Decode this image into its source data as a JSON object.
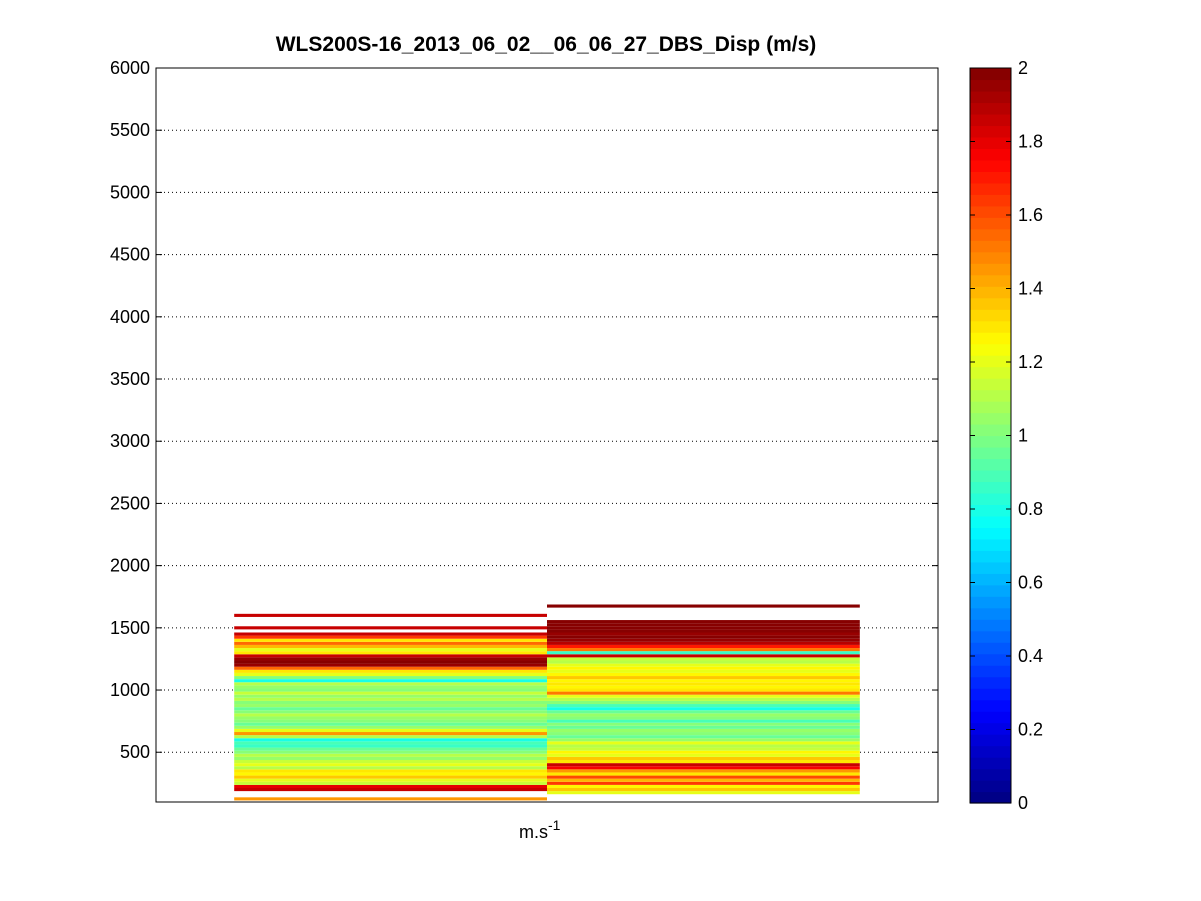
{
  "chart_data": {
    "type": "heatmap",
    "title": "WLS200S-16_2013_06_02__06_06_27_DBS_Disp (m/s)",
    "xlabel": "m.s",
    "xlabel_exponent": "-1",
    "ylim": [
      100,
      6000
    ],
    "yticks": [
      500,
      1000,
      1500,
      2000,
      2500,
      3000,
      3500,
      4000,
      4500,
      5000,
      5500,
      6000
    ],
    "grid": "y-dotted",
    "colormap": "jet",
    "colorbar": {
      "range": [
        0,
        2
      ],
      "ticks": [
        0,
        0.2,
        0.4,
        0.6,
        0.8,
        1,
        1.2,
        1.4,
        1.6,
        1.8,
        2
      ],
      "placement": "right"
    },
    "bin_height": 25,
    "series": [
      {
        "x_range": [
          -0.5,
          0.5
        ],
        "bins": [
          [
            125,
            1.45
          ],
          [
            150,
            null
          ],
          [
            175,
            null
          ],
          [
            200,
            1.85
          ],
          [
            225,
            1.8
          ],
          [
            250,
            1.15
          ],
          [
            275,
            1.2
          ],
          [
            300,
            1.35
          ],
          [
            325,
            1.25
          ],
          [
            350,
            1.3
          ],
          [
            375,
            1.1
          ],
          [
            400,
            1.2
          ],
          [
            425,
            1.15
          ],
          [
            450,
            1.05
          ],
          [
            475,
            1.1
          ],
          [
            500,
            1.0
          ],
          [
            525,
            0.95
          ],
          [
            550,
            0.85
          ],
          [
            575,
            0.9
          ],
          [
            600,
            0.8
          ],
          [
            625,
            1.1
          ],
          [
            650,
            1.45
          ],
          [
            675,
            1.2
          ],
          [
            700,
            1.05
          ],
          [
            725,
            0.95
          ],
          [
            750,
            1.0
          ],
          [
            775,
            1.05
          ],
          [
            800,
            1.1
          ],
          [
            825,
            1.0
          ],
          [
            850,
            0.95
          ],
          [
            875,
            1.05
          ],
          [
            900,
            1.0
          ],
          [
            925,
            1.1
          ],
          [
            950,
            1.05
          ],
          [
            975,
            1.15
          ],
          [
            1000,
            1.0
          ],
          [
            1025,
            1.05
          ],
          [
            1050,
            1.1
          ],
          [
            1075,
            0.8
          ],
          [
            1100,
            1.0
          ],
          [
            1125,
            1.2
          ],
          [
            1150,
            1.3
          ],
          [
            1175,
            1.55
          ],
          [
            1200,
            1.95
          ],
          [
            1225,
            2.0
          ],
          [
            1250,
            1.95
          ],
          [
            1275,
            1.85
          ],
          [
            1300,
            1.3
          ],
          [
            1325,
            1.2
          ],
          [
            1350,
            1.4
          ],
          [
            1375,
            1.55
          ],
          [
            1400,
            1.3
          ],
          [
            1425,
            1.65
          ],
          [
            1450,
            1.85
          ],
          [
            1475,
            null
          ],
          [
            1500,
            1.85
          ],
          [
            1525,
            null
          ],
          [
            1550,
            null
          ],
          [
            1575,
            null
          ],
          [
            1600,
            1.85
          ]
        ]
      },
      {
        "x_range": [
          0.5,
          1.5
        ],
        "bins": [
          [
            175,
            1.2
          ],
          [
            200,
            1.35
          ],
          [
            225,
            1.25
          ],
          [
            250,
            1.65
          ],
          [
            275,
            1.4
          ],
          [
            300,
            1.6
          ],
          [
            325,
            1.3
          ],
          [
            350,
            1.45
          ],
          [
            375,
            1.75
          ],
          [
            400,
            1.85
          ],
          [
            425,
            1.3
          ],
          [
            450,
            1.35
          ],
          [
            475,
            1.2
          ],
          [
            500,
            1.25
          ],
          [
            525,
            1.15
          ],
          [
            550,
            1.1
          ],
          [
            575,
            1.2
          ],
          [
            600,
            1.05
          ],
          [
            625,
            0.95
          ],
          [
            650,
            1.0
          ],
          [
            675,
            1.05
          ],
          [
            700,
            0.95
          ],
          [
            725,
            1.0
          ],
          [
            750,
            0.9
          ],
          [
            775,
            1.0
          ],
          [
            800,
            1.05
          ],
          [
            825,
            0.95
          ],
          [
            850,
            0.8
          ],
          [
            875,
            0.9
          ],
          [
            900,
            1.0
          ],
          [
            925,
            1.1
          ],
          [
            950,
            1.2
          ],
          [
            975,
            1.5
          ],
          [
            1000,
            1.3
          ],
          [
            1025,
            1.25
          ],
          [
            1050,
            1.3
          ],
          [
            1075,
            1.25
          ],
          [
            1100,
            1.35
          ],
          [
            1125,
            1.25
          ],
          [
            1150,
            1.2
          ],
          [
            1175,
            1.25
          ],
          [
            1200,
            1.2
          ],
          [
            1225,
            1.1
          ],
          [
            1250,
            1.15
          ],
          [
            1275,
            1.85
          ],
          [
            1300,
            0.85
          ],
          [
            1325,
            1.5
          ],
          [
            1350,
            1.7
          ],
          [
            1375,
            1.9
          ],
          [
            1400,
            1.95
          ],
          [
            1425,
            2.0
          ],
          [
            1450,
            1.95
          ],
          [
            1475,
            2.0
          ],
          [
            1500,
            2.0
          ],
          [
            1525,
            2.0
          ],
          [
            1550,
            2.0
          ],
          [
            1575,
            null
          ],
          [
            1600,
            null
          ],
          [
            1625,
            null
          ],
          [
            1650,
            null
          ],
          [
            1675,
            2.0
          ]
        ]
      }
    ]
  },
  "colors": {
    "axes": "#000000",
    "grid": "#000000",
    "background": "#ffffff"
  }
}
